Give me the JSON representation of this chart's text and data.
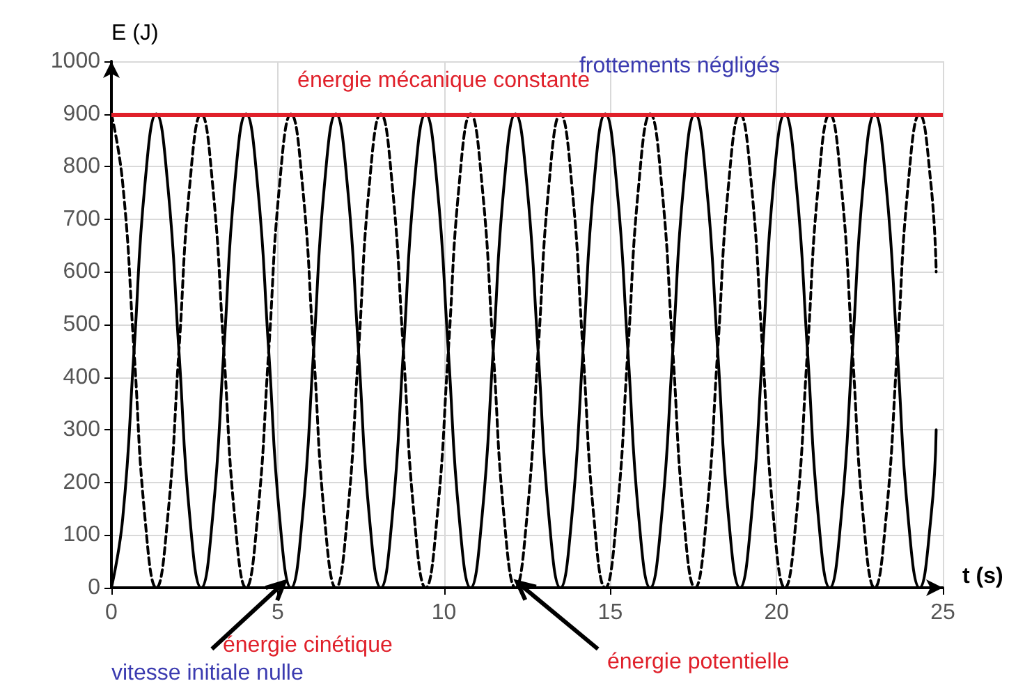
{
  "chart_data": {
    "type": "line",
    "ylabel": "E (J)",
    "xlabel": "t (s)",
    "x": [
      0,
      0.34,
      0.68,
      1.01,
      1.35,
      1.69,
      2.03,
      2.36,
      2.7,
      3.04,
      3.38,
      3.71,
      4.05,
      4.39,
      4.73,
      5.06,
      5.4,
      5.74,
      6.08,
      6.41,
      6.75,
      7.09,
      7.43,
      7.76,
      8.1,
      8.44,
      8.78,
      9.11,
      9.45,
      9.79,
      10.13,
      10.46,
      10.8,
      11.14,
      11.48,
      11.81,
      12.15,
      12.49,
      12.83,
      13.16,
      13.5,
      13.84,
      14.18,
      14.51,
      14.85,
      15.19,
      15.53,
      15.86,
      16.2,
      16.54,
      16.88,
      17.21,
      17.55,
      17.89,
      18.23,
      18.56,
      18.9,
      19.24,
      19.58,
      19.91,
      20.25,
      20.59,
      20.93,
      21.26,
      21.6,
      21.94,
      22.28,
      22.61,
      22.95,
      23.29,
      23.63,
      23.96,
      24.3,
      24.64,
      24.8
    ],
    "series": [
      {
        "color": "#000000",
        "line_style": "solid",
        "values": [
          0,
          132,
          450,
          768,
          900,
          768,
          450,
          132,
          0,
          132,
          450,
          768,
          900,
          768,
          450,
          132,
          0,
          132,
          450,
          768,
          900,
          768,
          450,
          132,
          0,
          132,
          450,
          768,
          900,
          768,
          450,
          132,
          0,
          132,
          450,
          768,
          900,
          768,
          450,
          132,
          0,
          132,
          450,
          768,
          900,
          768,
          450,
          132,
          0,
          132,
          450,
          768,
          900,
          768,
          450,
          132,
          0,
          132,
          450,
          768,
          900,
          768,
          450,
          132,
          0,
          132,
          450,
          768,
          900,
          768,
          450,
          132,
          0,
          132,
          300
        ]
      },
      {
        "color": "#000000",
        "line_style": "dashed",
        "values": [
          900,
          768,
          450,
          132,
          0,
          132,
          450,
          768,
          900,
          768,
          450,
          132,
          0,
          132,
          450,
          768,
          900,
          768,
          450,
          132,
          0,
          132,
          450,
          768,
          900,
          768,
          450,
          132,
          0,
          132,
          450,
          768,
          900,
          768,
          450,
          132,
          0,
          132,
          450,
          768,
          900,
          768,
          450,
          132,
          0,
          132,
          450,
          768,
          900,
          768,
          450,
          132,
          0,
          132,
          450,
          768,
          900,
          768,
          450,
          132,
          0,
          132,
          450,
          768,
          900,
          768,
          450,
          132,
          0,
          132,
          450,
          768,
          900,
          768,
          600
        ]
      }
    ],
    "xlim": [
      0,
      25
    ],
    "xticks": [
      0,
      5,
      10,
      15,
      20,
      25
    ],
    "ylim": [
      0,
      1000
    ],
    "yticks": [
      0,
      100,
      200,
      300,
      400,
      500,
      600,
      700,
      800,
      900,
      1000
    ],
    "grid": true,
    "marker": "none",
    "ref_lines": [
      {
        "axis": "y",
        "value": 900,
        "label": "énergie mécanique constante",
        "color": "#e0202a"
      }
    ],
    "annotations": [
      "frottements négligés",
      {
        "text": "énergie cinétique",
        "x": 5.2,
        "y": 0
      },
      "vitesse initiale nulle",
      {
        "text": "énergie potentielle",
        "x": 12.2,
        "y": 0
      }
    ]
  }
}
